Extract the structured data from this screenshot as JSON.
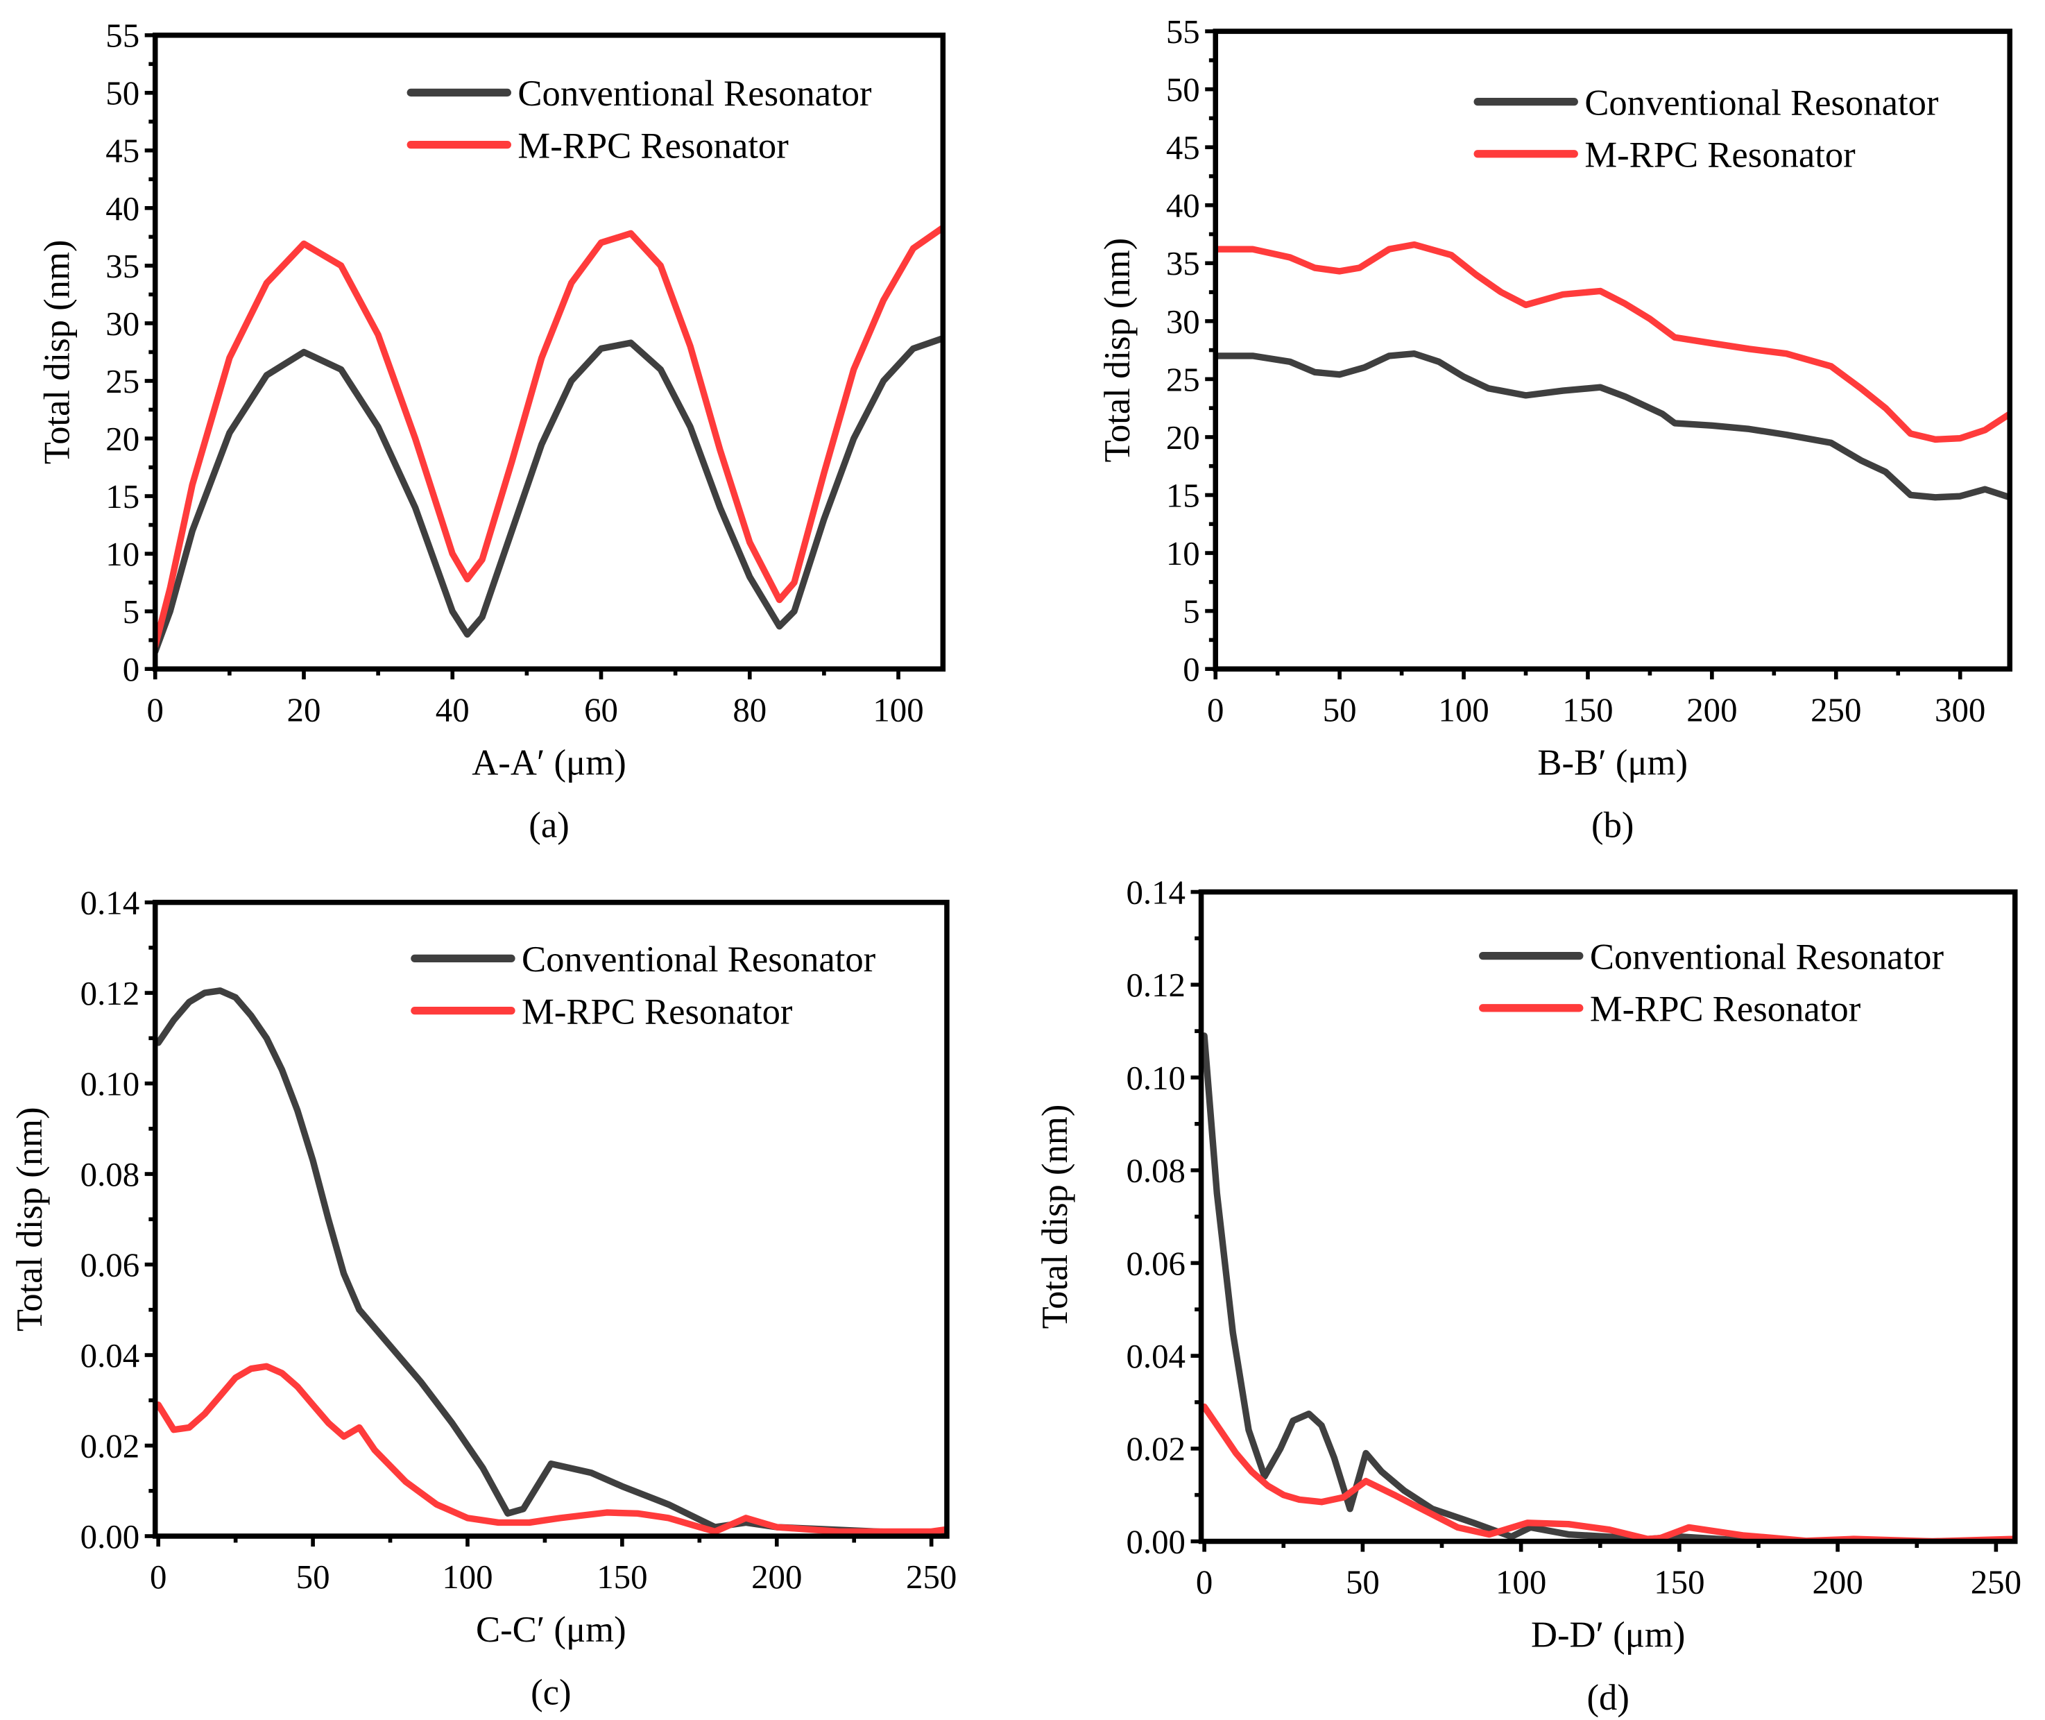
{
  "colors": {
    "conventional": "#3f3f3f",
    "mrpc": "#ff3b3b",
    "axis": "#000000"
  },
  "chart_data": [
    {
      "type": "line",
      "caption": "(a)",
      "xlabel": "A-A′  (μm)",
      "ylabel": "Total disp (nm)",
      "xlim": [
        0,
        106
      ],
      "ylim": [
        0,
        55
      ],
      "xticks": [
        0,
        20,
        40,
        60,
        80,
        100
      ],
      "xtick_labels": [
        "0",
        "20",
        "40",
        "60",
        "80",
        "100"
      ],
      "yticks": [
        0,
        5,
        10,
        15,
        20,
        25,
        30,
        35,
        40,
        45,
        50,
        55
      ],
      "ytick_labels": [
        "0",
        "5",
        "10",
        "15",
        "20",
        "25",
        "30",
        "35",
        "40",
        "45",
        "50",
        "55"
      ],
      "legend": "top-right",
      "series": [
        {
          "name": "Conventional Resonator",
          "color": "#3f3f3f",
          "x": [
            0,
            2,
            5,
            10,
            15,
            20,
            25,
            30,
            35,
            40,
            42,
            44,
            48,
            52,
            56,
            60,
            64,
            68,
            72,
            76,
            80,
            84,
            86,
            90,
            94,
            98,
            102,
            106
          ],
          "y": [
            1.5,
            5,
            12,
            20.5,
            25.5,
            27.5,
            26,
            21,
            14,
            5,
            3,
            4.5,
            12,
            19.5,
            25,
            27.8,
            28.3,
            26,
            21,
            14,
            8,
            3.7,
            5,
            13,
            20,
            25,
            27.8,
            28.7
          ]
        },
        {
          "name": "M-RPC Resonator",
          "color": "#ff3b3b",
          "x": [
            0,
            2,
            5,
            10,
            15,
            20,
            25,
            30,
            35,
            40,
            42,
            44,
            48,
            52,
            56,
            60,
            64,
            68,
            72,
            76,
            80,
            84,
            86,
            90,
            94,
            98,
            102,
            106
          ],
          "y": [
            2,
            7,
            16,
            27,
            33.5,
            36.9,
            35,
            29,
            20,
            10,
            7.8,
            9.5,
            18,
            27,
            33.5,
            37,
            37.8,
            35,
            28,
            19,
            11,
            6,
            7.5,
            17,
            26,
            32,
            36.5,
            38.3
          ]
        }
      ]
    },
    {
      "type": "line",
      "caption": "(b)",
      "xlabel": "B-B′  (μm)",
      "ylabel": "Total disp (nm)",
      "xlim": [
        0,
        320
      ],
      "ylim": [
        0,
        55
      ],
      "xticks": [
        0,
        50,
        100,
        150,
        200,
        250,
        300
      ],
      "xtick_labels": [
        "0",
        "50",
        "100",
        "150",
        "200",
        "250",
        "300"
      ],
      "yticks": [
        0,
        5,
        10,
        15,
        20,
        25,
        30,
        35,
        40,
        45,
        50,
        55
      ],
      "ytick_labels": [
        "0",
        "5",
        "10",
        "15",
        "20",
        "25",
        "30",
        "35",
        "40",
        "45",
        "50",
        "55"
      ],
      "legend": "top-right",
      "series": [
        {
          "name": "Conventional Resonator",
          "color": "#3f3f3f",
          "x": [
            0,
            15,
            30,
            40,
            50,
            60,
            70,
            80,
            90,
            100,
            110,
            125,
            140,
            155,
            165,
            180,
            185,
            200,
            215,
            230,
            248,
            260,
            270,
            280,
            290,
            300,
            310,
            320
          ],
          "y": [
            27,
            27,
            26.5,
            25.6,
            25.4,
            26,
            27,
            27.2,
            26.5,
            25.2,
            24.2,
            23.6,
            24,
            24.3,
            23.5,
            22,
            21.2,
            21,
            20.7,
            20.2,
            19.5,
            18,
            17,
            15,
            14.8,
            14.9,
            15.5,
            14.8
          ]
        },
        {
          "name": "M-RPC Resonator",
          "color": "#ff3b3b",
          "x": [
            0,
            15,
            30,
            40,
            50,
            58,
            70,
            80,
            95,
            105,
            115,
            125,
            140,
            155,
            165,
            175,
            185,
            200,
            215,
            230,
            248,
            260,
            270,
            280,
            290,
            300,
            310,
            320
          ],
          "y": [
            36.2,
            36.2,
            35.5,
            34.6,
            34.3,
            34.6,
            36.2,
            36.6,
            35.7,
            34,
            32.5,
            31.4,
            32.3,
            32.6,
            31.5,
            30.2,
            28.6,
            28.1,
            27.6,
            27.2,
            26.1,
            24.2,
            22.5,
            20.3,
            19.8,
            19.9,
            20.6,
            22
          ]
        }
      ]
    },
    {
      "type": "line",
      "caption": "(c)",
      "xlabel": "C-C′  (μm)",
      "ylabel": "Total disp (nm)",
      "xlim": [
        -1,
        255
      ],
      "ylim": [
        0,
        0.14
      ],
      "xticks": [
        0,
        50,
        100,
        150,
        200,
        250
      ],
      "xtick_labels": [
        "0",
        "50",
        "100",
        "150",
        "200",
        "250"
      ],
      "yticks": [
        0,
        0.02,
        0.04,
        0.06,
        0.08,
        0.1,
        0.12,
        0.14
      ],
      "ytick_labels": [
        "0.00",
        "0.02",
        "0.04",
        "0.06",
        "0.08",
        "0.10",
        "0.12",
        "0.14"
      ],
      "legend": "top-right",
      "series": [
        {
          "name": "Conventional Resonator",
          "color": "#3f3f3f",
          "x": [
            0,
            5,
            10,
            15,
            20,
            25,
            30,
            35,
            40,
            45,
            50,
            55,
            60,
            65,
            75,
            85,
            95,
            105,
            113,
            118,
            127,
            140,
            150,
            165,
            180,
            190,
            200,
            250,
            255
          ],
          "y": [
            0.109,
            0.114,
            0.118,
            0.12,
            0.1205,
            0.119,
            0.115,
            0.11,
            0.103,
            0.094,
            0.083,
            0.07,
            0.058,
            0.05,
            0.042,
            0.034,
            0.025,
            0.015,
            0.005,
            0.006,
            0.016,
            0.014,
            0.011,
            0.007,
            0.002,
            0.003,
            0.002,
            0.0005,
            0.001
          ]
        },
        {
          "name": "M-RPC Resonator",
          "color": "#ff3b3b",
          "x": [
            0,
            5,
            10,
            15,
            20,
            25,
            30,
            35,
            40,
            45,
            50,
            55,
            60,
            65,
            70,
            80,
            90,
            100,
            110,
            120,
            125,
            130,
            145,
            155,
            165,
            180,
            190,
            200,
            220,
            250,
            255
          ],
          "y": [
            0.029,
            0.0235,
            0.024,
            0.027,
            0.031,
            0.035,
            0.037,
            0.0375,
            0.036,
            0.033,
            0.029,
            0.025,
            0.022,
            0.024,
            0.019,
            0.012,
            0.007,
            0.004,
            0.003,
            0.003,
            0.0035,
            0.004,
            0.0052,
            0.005,
            0.004,
            0.001,
            0.004,
            0.002,
            0.001,
            0.001,
            0.0015
          ]
        }
      ]
    },
    {
      "type": "line",
      "caption": "(d)",
      "xlabel": "D-D′  (μm)",
      "ylabel": "Total disp (nm)",
      "xlim": [
        -1,
        256
      ],
      "ylim": [
        0,
        0.14
      ],
      "xticks": [
        0,
        50,
        100,
        150,
        200,
        250
      ],
      "xtick_labels": [
        "0",
        "50",
        "100",
        "150",
        "200",
        "250"
      ],
      "yticks": [
        0,
        0.02,
        0.04,
        0.06,
        0.08,
        0.1,
        0.12,
        0.14
      ],
      "ytick_labels": [
        "0.00",
        "0.02",
        "0.04",
        "0.06",
        "0.08",
        "0.10",
        "0.12",
        "0.14"
      ],
      "legend": "top-right",
      "series": [
        {
          "name": "Conventional Resonator",
          "color": "#3f3f3f",
          "x": [
            0,
            4,
            9,
            14,
            19,
            24,
            28,
            33,
            37,
            41,
            46,
            51,
            56,
            63,
            72,
            85,
            97,
            103,
            115,
            140,
            150,
            175,
            250,
            256
          ],
          "y": [
            0.109,
            0.075,
            0.045,
            0.024,
            0.014,
            0.02,
            0.026,
            0.0275,
            0.025,
            0.018,
            0.007,
            0.019,
            0.015,
            0.011,
            0.007,
            0.004,
            0.001,
            0.003,
            0.0015,
            0.0005,
            0.001,
            0,
            0,
            0
          ]
        },
        {
          "name": "M-RPC Resonator",
          "color": "#ff3b3b",
          "x": [
            0,
            5,
            10,
            15,
            20,
            25,
            30,
            37,
            44,
            51,
            60,
            70,
            80,
            90,
            102,
            115,
            128,
            140,
            144,
            153,
            170,
            190,
            205,
            230,
            256
          ],
          "y": [
            0.029,
            0.024,
            0.019,
            0.015,
            0.012,
            0.01,
            0.009,
            0.0085,
            0.0095,
            0.013,
            0.01,
            0.0065,
            0.003,
            0.0015,
            0.004,
            0.0037,
            0.0025,
            0.0005,
            0.0007,
            0.003,
            0.0013,
            0.0001,
            0.0005,
            0,
            0.0005
          ]
        }
      ]
    }
  ]
}
